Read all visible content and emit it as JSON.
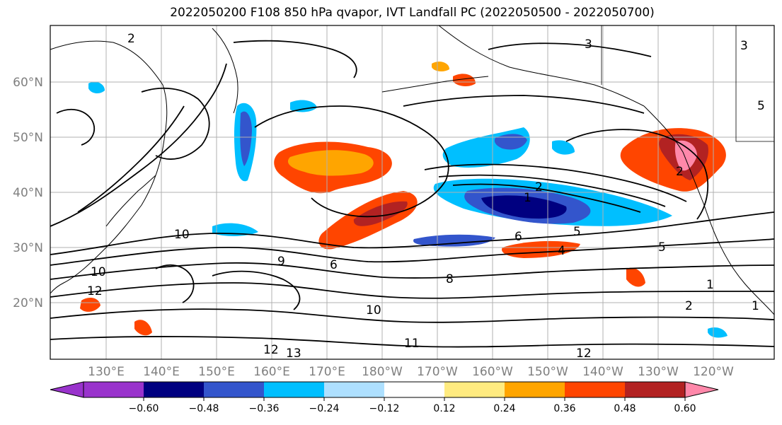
{
  "title": "2022050200 F108 850 hPa qvapor, IVT Landfall PC (2022050500 - 2022050700)",
  "latitude_labels": [
    "60°N",
    "50°N",
    "40°N",
    "30°N",
    "20°N"
  ],
  "longitude_labels": [
    "130°E",
    "140°E",
    "150°E",
    "160°E",
    "170°E",
    "180°W",
    "170°W",
    "160°W",
    "150°W",
    "140°W",
    "130°W",
    "120°W"
  ],
  "colorbar": {
    "ticks": [
      "−0.60",
      "−0.48",
      "−0.36",
      "−0.24",
      "−0.12",
      "0.12",
      "0.24",
      "0.36",
      "0.48",
      "0.60"
    ],
    "colors": [
      "#9933cc",
      "#000080",
      "#3355cc",
      "#00bfff",
      "#aee0ff",
      "#ffffff",
      "#ffeb80",
      "#ffa500",
      "#ff4500",
      "#b22222",
      "#ff88aa"
    ]
  },
  "contour_labels": [
    "2",
    "3",
    "3",
    "5",
    "2",
    "1",
    "2",
    "6",
    "5",
    "4",
    "10",
    "10",
    "9",
    "6",
    "8",
    "12",
    "12",
    "13",
    "11",
    "12",
    "2",
    "1",
    "1",
    "5",
    "10"
  ],
  "colors": {
    "contour": "#000000",
    "land_outline": "#000000",
    "grid": "#b0b0b0"
  }
}
